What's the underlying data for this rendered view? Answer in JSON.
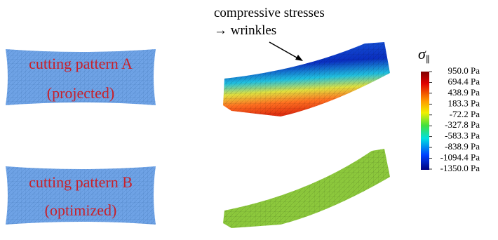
{
  "annotation": {
    "line1": "compressive stresses",
    "line2": "→ wrinkles"
  },
  "patterns": [
    {
      "title": "cutting pattern A",
      "subtitle": "(projected)"
    },
    {
      "title": "cutting pattern B",
      "subtitle": "(optimized)"
    }
  ],
  "colorbar": {
    "symbol": "σ",
    "subscript": "∥",
    "lim": [
      -1350,
      950
    ],
    "ticks": [
      {
        "value": 950,
        "label": "950.0 Pa"
      },
      {
        "value": 694.4,
        "label": "694.4 Pa"
      },
      {
        "value": 438.9,
        "label": "438.9 Pa"
      },
      {
        "value": 183.3,
        "label": "183.3 Pa"
      },
      {
        "value": -72.2,
        "label": "-72.2 Pa"
      },
      {
        "value": -327.8,
        "label": "-327.8 Pa"
      },
      {
        "value": -583.3,
        "label": "-583.3 Pa"
      },
      {
        "value": -838.9,
        "label": "-838.9 Pa"
      },
      {
        "value": -1094.4,
        "label": "-1094.4 Pa"
      },
      {
        "value": -1350,
        "label": "-1350.0 Pa"
      }
    ]
  }
}
